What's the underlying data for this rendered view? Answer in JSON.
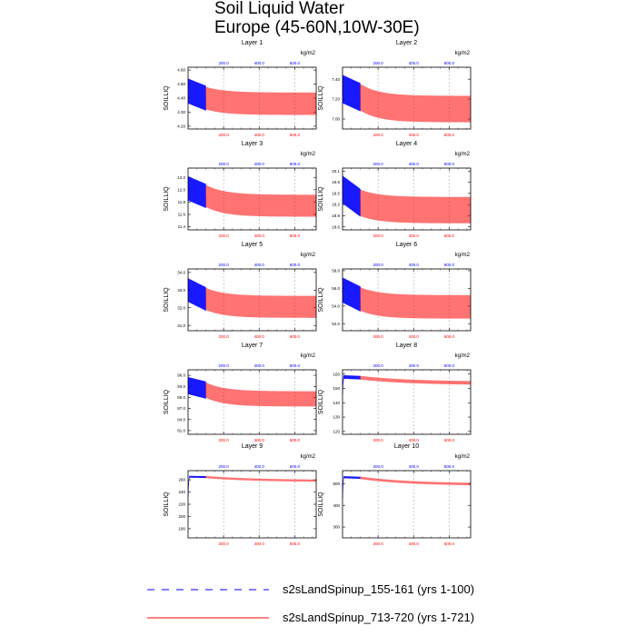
{
  "figure": {
    "title_line1": "Soil Liquid Water",
    "title_line2": "Europe (45-60N,10W-30E)"
  },
  "legend": [
    {
      "label": "s2sLandSpinup_155-161 (yrs 1-100)",
      "color": "#0000ff",
      "style": "dashed"
    },
    {
      "label": "s2sLandSpinup_713-720 (yrs 1-721)",
      "color": "#ff0000",
      "style": "solid"
    }
  ],
  "chart_data": [
    {
      "type": "line",
      "title": "Layer 1",
      "ylabel": "SOILLIQ",
      "units": "kg/m2",
      "x_top_ticks": [
        "200.0",
        "400.0",
        "600.0"
      ],
      "x_bottom_ticks": [
        "200.0",
        "400.0",
        "600.0"
      ],
      "ylim": [
        4.18,
        4.62
      ],
      "yticks": [
        4.2,
        4.3,
        4.4,
        4.5,
        4.6
      ],
      "ytick_labels": [
        "4.20",
        "4.30",
        "4.40",
        "4.50",
        "4.60"
      ],
      "series": [
        {
          "name": "s2sLandSpinup_155-161 (yrs 1-100)",
          "color": "#0000ff",
          "x_years": [
            1,
            100
          ],
          "start_mid": 4.45,
          "amplitude": 0.1,
          "end_mid": 4.4
        },
        {
          "name": "s2sLandSpinup_713-720 (yrs 1-721)",
          "color": "#ff0000",
          "x_years": [
            100,
            721
          ],
          "start_mid": 4.4,
          "amplitude": 0.09,
          "end_mid": 4.36,
          "decay": 0.008
        }
      ]
    },
    {
      "type": "line",
      "title": "Layer 2",
      "ylabel": "SOILLIQ",
      "units": "kg/m2",
      "x_top_ticks": [
        "200.0",
        "400.0",
        "600.0"
      ],
      "x_bottom_ticks": [
        "200.0",
        "400.0",
        "600.0"
      ],
      "ylim": [
        6.9,
        7.52
      ],
      "yticks": [
        7.0,
        7.2,
        7.4
      ],
      "ytick_labels": [
        "7.00",
        "7.20",
        "7.40"
      ],
      "series": [
        {
          "name": "s2sLandSpinup_155-161 (yrs 1-100)",
          "color": "#0000ff",
          "x_years": [
            1,
            100
          ],
          "start_mid": 7.3,
          "amplitude": 0.16,
          "end_mid": 7.22
        },
        {
          "name": "s2sLandSpinup_713-720 (yrs 1-721)",
          "color": "#ff0000",
          "x_years": [
            100,
            721
          ],
          "start_mid": 7.22,
          "amplitude": 0.15,
          "end_mid": 7.1,
          "decay": 0.008
        }
      ]
    },
    {
      "type": "line",
      "title": "Layer 3",
      "ylabel": "SOILLIQ",
      "units": "kg/m2",
      "x_top_ticks": [
        "200.0",
        "400.0",
        "600.0"
      ],
      "x_bottom_ticks": [
        "200.0",
        "400.0",
        "600.0"
      ],
      "ylim": [
        11.35,
        12.35
      ],
      "yticks": [
        11.4,
        11.6,
        11.8,
        12.0,
        12.2
      ],
      "ytick_labels": [
        "11.4",
        "11.6",
        "11.8",
        "12.0",
        "12.2"
      ],
      "series": [
        {
          "name": "s2sLandSpinup_155-161 (yrs 1-100)",
          "color": "#0000ff",
          "x_years": [
            1,
            100
          ],
          "start_mid": 12.02,
          "amplitude": 0.22,
          "end_mid": 11.9
        },
        {
          "name": "s2sLandSpinup_713-720 (yrs 1-721)",
          "color": "#ff0000",
          "x_years": [
            100,
            721
          ],
          "start_mid": 11.9,
          "amplitude": 0.2,
          "end_mid": 11.74,
          "decay": 0.008
        }
      ]
    },
    {
      "type": "line",
      "title": "Layer 4",
      "ylabel": "SOILLIQ",
      "units": "kg/m2",
      "x_top_ticks": [
        "200.0",
        "400.0",
        "600.0"
      ],
      "x_bottom_ticks": [
        "200.0",
        "400.0",
        "600.0"
      ],
      "ylim": [
        18.52,
        20.18
      ],
      "yticks": [
        18.6,
        18.9,
        19.2,
        19.5,
        19.8,
        20.1
      ],
      "ytick_labels": [
        "18.6",
        "18.9",
        "19.2",
        "19.5",
        "19.8",
        "20.1"
      ],
      "series": [
        {
          "name": "s2sLandSpinup_155-161 (yrs 1-100)",
          "color": "#0000ff",
          "x_years": [
            1,
            100
          ],
          "start_mid": 19.6,
          "amplitude": 0.42,
          "end_mid": 19.25
        },
        {
          "name": "s2sLandSpinup_713-720 (yrs 1-721)",
          "color": "#ff0000",
          "x_years": [
            100,
            721
          ],
          "start_mid": 19.25,
          "amplitude": 0.4,
          "end_mid": 19.05,
          "decay": 0.008
        }
      ]
    },
    {
      "type": "line",
      "title": "Layer 5",
      "ylabel": "SOILLIQ",
      "units": "kg/m2",
      "x_top_ticks": [
        "200.0",
        "400.0",
        "600.0"
      ],
      "x_bottom_ticks": [
        "200.0",
        "400.0",
        "600.0"
      ],
      "ylim": [
        30.7,
        34.2
      ],
      "yticks": [
        31.0,
        32.0,
        33.0,
        34.0
      ],
      "ytick_labels": [
        "31.0",
        "32.0",
        "33.0",
        "34.0"
      ],
      "series": [
        {
          "name": "s2sLandSpinup_155-161 (yrs 1-100)",
          "color": "#0000ff",
          "x_years": [
            1,
            100
          ],
          "start_mid": 33.0,
          "amplitude": 0.75,
          "end_mid": 32.5
        },
        {
          "name": "s2sLandSpinup_713-720 (yrs 1-721)",
          "color": "#ff0000",
          "x_years": [
            100,
            721
          ],
          "start_mid": 32.5,
          "amplitude": 0.7,
          "end_mid": 32.05,
          "decay": 0.008
        }
      ]
    },
    {
      "type": "line",
      "title": "Layer 6",
      "ylabel": "SOILLIQ",
      "units": "kg/m2",
      "x_top_ticks": [
        "200.0",
        "400.0",
        "600.0"
      ],
      "x_bottom_ticks": [
        "200.0",
        "400.0",
        "600.0"
      ],
      "ylim": [
        51.2,
        58.2
      ],
      "yticks": [
        52.0,
        54.0,
        56.0,
        58.0
      ],
      "ytick_labels": [
        "52.0",
        "54.0",
        "56.0",
        "58.0"
      ],
      "series": [
        {
          "name": "s2sLandSpinup_155-161 (yrs 1-100)",
          "color": "#0000ff",
          "x_years": [
            1,
            100
          ],
          "start_mid": 55.8,
          "amplitude": 1.6,
          "end_mid": 54.8
        },
        {
          "name": "s2sLandSpinup_713-720 (yrs 1-721)",
          "color": "#ff0000",
          "x_years": [
            100,
            721
          ],
          "start_mid": 54.8,
          "amplitude": 1.5,
          "end_mid": 53.9,
          "decay": 0.008
        }
      ]
    },
    {
      "type": "line",
      "title": "Layer 7",
      "ylabel": "SOILLIQ",
      "units": "kg/m2",
      "x_top_ticks": [
        "200.0",
        "400.0",
        "600.0"
      ],
      "x_bottom_ticks": [
        "200.0",
        "400.0",
        "600.0"
      ],
      "ylim": [
        80.0,
        97.5
      ],
      "yticks": [
        81.0,
        84.0,
        87.0,
        90.0,
        93.0,
        96.0
      ],
      "ytick_labels": [
        "81.0",
        "84.0",
        "87.0",
        "90.0",
        "93.0",
        "96.0"
      ],
      "series": [
        {
          "name": "s2sLandSpinup_155-161 (yrs 1-100)",
          "color": "#0000ff",
          "x_years": [
            1,
            100
          ],
          "start_mid": 93.2,
          "amplitude": 2.6,
          "end_mid": 92.0
        },
        {
          "name": "s2sLandSpinup_713-720 (yrs 1-721)",
          "color": "#ff0000",
          "x_years": [
            100,
            721
          ],
          "start_mid": 92.0,
          "amplitude": 2.3,
          "end_mid": 89.6,
          "decay": 0.008
        }
      ]
    },
    {
      "type": "line",
      "title": "Layer 8",
      "ylabel": "SOILLIQ",
      "units": "kg/m2",
      "x_top_ticks": [
        "200.0",
        "400.0",
        "600.0"
      ],
      "x_bottom_ticks": [
        "200.0",
        "400.0",
        "600.0"
      ],
      "ylim": [
        118,
        163
      ],
      "yticks": [
        120,
        130,
        140,
        150,
        160
      ],
      "ytick_labels": [
        "120",
        "130",
        "140",
        "150",
        "160"
      ],
      "series": [
        {
          "name": "s2sLandSpinup_155-161 (yrs 1-100)",
          "color": "#0000ff",
          "x_years": [
            1,
            100
          ],
          "start_mid": 158,
          "amplitude": 1.2,
          "end_mid": 157.5,
          "spinup_from": 146
        },
        {
          "name": "s2sLandSpinup_713-720 (yrs 1-721)",
          "color": "#ff0000",
          "x_years": [
            100,
            721
          ],
          "start_mid": 157.5,
          "amplitude": 1.2,
          "end_mid": 153.5,
          "decay": 0.003
        }
      ]
    },
    {
      "type": "line",
      "title": "Layer 9",
      "ylabel": "SOILLIQ",
      "units": "kg/m2",
      "x_top_ticks": [
        "200.0",
        "400.0",
        "600.0"
      ],
      "x_bottom_ticks": [
        "200.0",
        "400.0",
        "600.0"
      ],
      "ylim": [
        165,
        275
      ],
      "yticks": [
        180,
        200,
        220,
        240,
        260
      ],
      "ytick_labels": [
        "180",
        "200",
        "220",
        "240",
        "260"
      ],
      "series": [
        {
          "name": "s2sLandSpinup_155-161 (yrs 1-100)",
          "color": "#0000ff",
          "x_years": [
            1,
            100
          ],
          "start_mid": 265,
          "amplitude": 1.2,
          "end_mid": 264.5,
          "spinup_from": 232
        },
        {
          "name": "s2sLandSpinup_713-720 (yrs 1-721)",
          "color": "#ff0000",
          "x_years": [
            100,
            721
          ],
          "start_mid": 264.5,
          "amplitude": 1.5,
          "end_mid": 258,
          "decay": 0.003
        }
      ]
    },
    {
      "type": "line",
      "title": "Layer 10",
      "ylabel": "SOILLIQ",
      "units": "kg/m2",
      "x_top_ticks": [
        "200.0",
        "400.0",
        "600.0"
      ],
      "x_bottom_ticks": [
        "200.0",
        "400.0",
        "600.0"
      ],
      "ylim": [
        250,
        560
      ],
      "yticks": [
        300,
        400,
        500
      ],
      "ytick_labels": [
        "300",
        "400",
        "500"
      ],
      "series": [
        {
          "name": "s2sLandSpinup_155-161 (yrs 1-100)",
          "color": "#0000ff",
          "x_years": [
            1,
            100
          ],
          "start_mid": 530,
          "amplitude": 4,
          "end_mid": 527,
          "spinup_from": 430
        },
        {
          "name": "s2sLandSpinup_713-720 (yrs 1-721)",
          "color": "#ff0000",
          "x_years": [
            100,
            721
          ],
          "start_mid": 527,
          "amplitude": 5,
          "end_mid": 495,
          "decay": 0.003
        }
      ]
    }
  ]
}
